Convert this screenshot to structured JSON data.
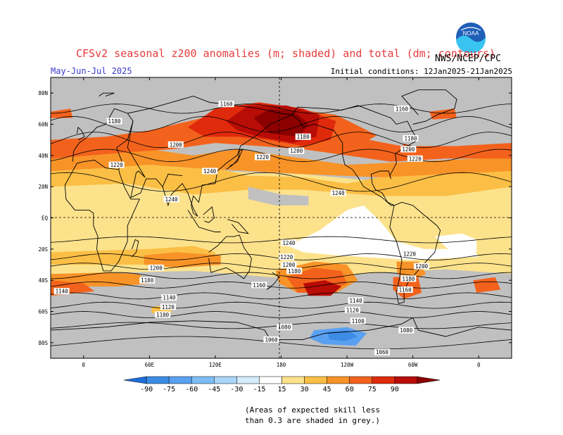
{
  "title": "CFSv2 seasonal z200 anomalies (m; shaded) and total (dm; contours)",
  "period": "May-Jun-Jul 2025",
  "initial_conditions": "Initial conditions: 12Jan2025-21Jan2025",
  "agency": "NWS/NCEP/CPC",
  "logo_text": "NOAA",
  "skill_note_line1": "(Areas of expected skill less",
  "skill_note_line2": "than 0.3 are shaded in grey.)",
  "lat_labels": [
    "80N",
    "60N",
    "40N",
    "20N",
    "EQ",
    "20S",
    "40S",
    "60S",
    "80S"
  ],
  "lon_labels": [
    "0",
    "60E",
    "120E",
    "180",
    "120W",
    "60W",
    "0"
  ],
  "colorbar": {
    "levels": [
      "-90",
      "-75",
      "-60",
      "-45",
      "-30",
      "-15",
      "15",
      "30",
      "45",
      "60",
      "75",
      "90"
    ],
    "colors": [
      "#1e6edb",
      "#3c8ce6",
      "#5aa0f0",
      "#7dbdf5",
      "#a8d6fa",
      "#d2ecfc",
      "#ffffff",
      "#fde28c",
      "#fbbf46",
      "#f89328",
      "#f3621c",
      "#e02a0c",
      "#b80c06",
      "#8c0000"
    ]
  },
  "colors": {
    "grey": "#c0c0c0",
    "light_yellow": "#fde28c",
    "orange": "#fbbf46",
    "dark_orange": "#f89328",
    "red_orange": "#f3621c",
    "red": "#e02a0c",
    "dark_red": "#b80c06",
    "darkest_red": "#8c0000",
    "blue": "#3c8ce6",
    "light_blue": "#5aa0f0"
  },
  "contour_labels": [
    {
      "text": "1160",
      "lon": 130,
      "lat": 73
    },
    {
      "text": "1180",
      "lon": 28,
      "lat": 62
    },
    {
      "text": "1200",
      "lon": 84,
      "lat": 47
    },
    {
      "text": "1220",
      "lon": 30,
      "lat": 34
    },
    {
      "text": "1240",
      "lon": 115,
      "lat": 30
    },
    {
      "text": "1220",
      "lon": 163,
      "lat": 39
    },
    {
      "text": "1200",
      "lon": 194,
      "lat": 43
    },
    {
      "text": "1180",
      "lon": 200,
      "lat": 52
    },
    {
      "text": "1160",
      "lon": 290,
      "lat": 70
    },
    {
      "text": "1180",
      "lon": 298,
      "lat": 51
    },
    {
      "text": "1200",
      "lon": 296,
      "lat": 44
    },
    {
      "text": "1220",
      "lon": 302,
      "lat": 38
    },
    {
      "text": "1240",
      "lon": 80,
      "lat": 12
    },
    {
      "text": "1240",
      "lon": 232,
      "lat": 16
    },
    {
      "text": "1240",
      "lon": 187,
      "lat": -16
    },
    {
      "text": "1220",
      "lon": 185,
      "lat": -25
    },
    {
      "text": "1200",
      "lon": 187,
      "lat": -30
    },
    {
      "text": "1180",
      "lon": 192,
      "lat": -34
    },
    {
      "text": "1160",
      "lon": 160,
      "lat": -43
    },
    {
      "text": "1200",
      "lon": 66,
      "lat": -32
    },
    {
      "text": "1180",
      "lon": 58,
      "lat": -40
    },
    {
      "text": "1140",
      "lon": 78,
      "lat": -51
    },
    {
      "text": "1120",
      "lon": 77,
      "lat": -57
    },
    {
      "text": "1100",
      "lon": 72,
      "lat": -62
    },
    {
      "text": "1220",
      "lon": 297,
      "lat": -23
    },
    {
      "text": "1200",
      "lon": 308,
      "lat": -31
    },
    {
      "text": "1180",
      "lon": 296,
      "lat": -39
    },
    {
      "text": "1160",
      "lon": 293,
      "lat": -46
    },
    {
      "text": "1140",
      "lon": 248,
      "lat": -53
    },
    {
      "text": "1120",
      "lon": 245,
      "lat": -59
    },
    {
      "text": "1100",
      "lon": 250,
      "lat": -66
    },
    {
      "text": "1080",
      "lon": 183,
      "lat": -70
    },
    {
      "text": "1080",
      "lon": 294,
      "lat": -72
    },
    {
      "text": "1060",
      "lon": 171,
      "lat": -78
    },
    {
      "text": "1060",
      "lon": 272,
      "lat": -86
    },
    {
      "text": "1140",
      "lon": -20,
      "lat": -47
    }
  ]
}
